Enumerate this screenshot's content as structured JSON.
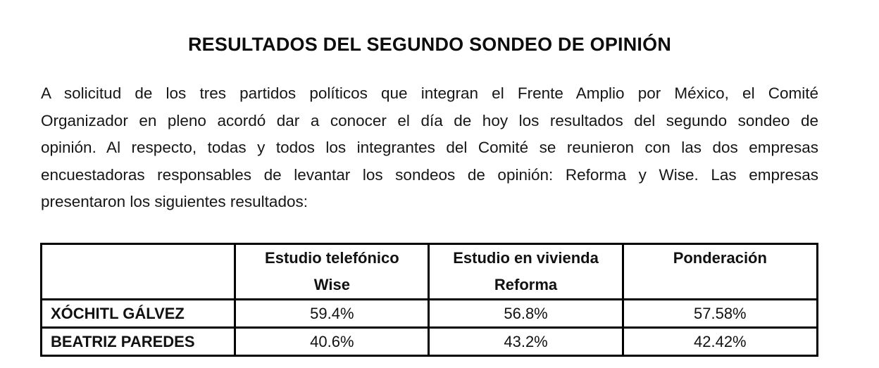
{
  "document": {
    "title": "RESULTADOS DEL SEGUNDO SONDEO DE OPINIÓN",
    "paragraph_lines": [
      "A solicitud de los tres partidos políticos que integran el Frente Amplio por México, el Comité",
      "Organizador en pleno acordó dar a conocer el día de hoy los resultados del segundo sondeo de",
      "opinión. Al respecto, todas y todos los integrantes del Comité se reunieron con las dos empresas",
      "encuestadoras responsables de levantar los sondeos de opinión: Reforma y Wise. Las empresas",
      "presentaron los siguientes resultados:"
    ]
  },
  "table": {
    "headers": [
      {
        "line1": "",
        "line2": ""
      },
      {
        "line1": "Estudio telefónico",
        "line2": "Wise"
      },
      {
        "line1": "Estudio en vivienda",
        "line2": "Reforma"
      },
      {
        "line1": "Ponderación",
        "line2": ""
      }
    ],
    "rows": [
      {
        "name": "XÓCHITL GÁLVEZ",
        "values": [
          "59.4%",
          "56.8%",
          "57.58%"
        ]
      },
      {
        "name": "BEATRIZ PAREDES",
        "values": [
          "40.6%",
          "43.2%",
          "42.42%"
        ]
      }
    ]
  }
}
